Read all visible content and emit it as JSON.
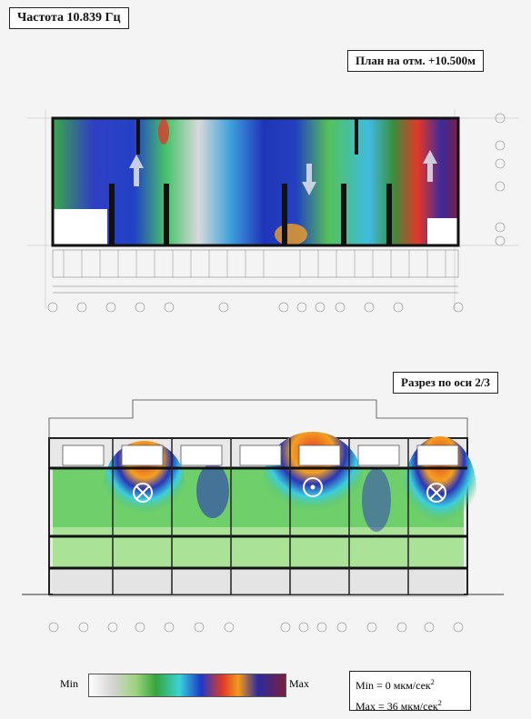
{
  "frequency_label": "Частота 10.839 Гц",
  "plan_title": "План на отм. +10.500м",
  "section_title": "Разрез по оси 2/3",
  "legend": {
    "min_label": "Min",
    "max_label": "Max",
    "min_value_text": "Min = 0 мкм/сек",
    "max_value_text": "Max = 36 мкм/сек",
    "unit_exponent": "2",
    "gradient_colors": [
      "#ffffff",
      "#d4d4d4",
      "#9bd37a",
      "#36a53c",
      "#3ad3d8",
      "#1d39c9",
      "#e13a2a",
      "#f39a1c",
      "#2c2a9c",
      "#7a1f40"
    ]
  },
  "plan": {
    "arrows": [
      "up",
      "down",
      "up"
    ]
  }
}
